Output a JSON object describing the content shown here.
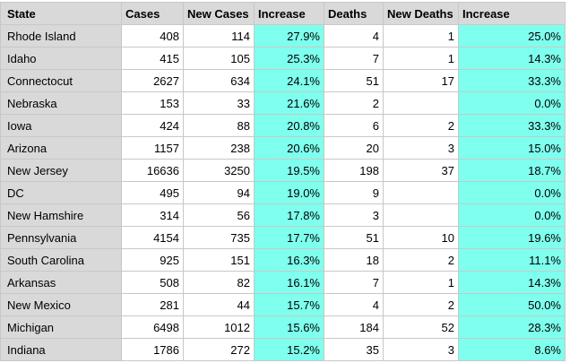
{
  "headers": [
    "State",
    "Cases",
    "New Cases",
    "Increase",
    "Deaths",
    "New Deaths",
    "Increase"
  ],
  "rows": [
    {
      "state": "Rhode Island",
      "cases": "408",
      "new_cases": "114",
      "increase": "27.9%",
      "deaths": "4",
      "new_deaths": "1",
      "death_increase": "25.0%"
    },
    {
      "state": "Idaho",
      "cases": "415",
      "new_cases": "105",
      "increase": "25.3%",
      "deaths": "7",
      "new_deaths": "1",
      "death_increase": "14.3%"
    },
    {
      "state": "Connectocut",
      "cases": "2627",
      "new_cases": "634",
      "increase": "24.1%",
      "deaths": "51",
      "new_deaths": "17",
      "death_increase": "33.3%"
    },
    {
      "state": "Nebraska",
      "cases": "153",
      "new_cases": "33",
      "increase": "21.6%",
      "deaths": "2",
      "new_deaths": "",
      "death_increase": "0.0%"
    },
    {
      "state": "Iowa",
      "cases": "424",
      "new_cases": "88",
      "increase": "20.8%",
      "deaths": "6",
      "new_deaths": "2",
      "death_increase": "33.3%"
    },
    {
      "state": "Arizona",
      "cases": "1157",
      "new_cases": "238",
      "increase": "20.6%",
      "deaths": "20",
      "new_deaths": "3",
      "death_increase": "15.0%"
    },
    {
      "state": "New Jersey",
      "cases": "16636",
      "new_cases": "3250",
      "increase": "19.5%",
      "deaths": "198",
      "new_deaths": "37",
      "death_increase": "18.7%"
    },
    {
      "state": "DC",
      "cases": "495",
      "new_cases": "94",
      "increase": "19.0%",
      "deaths": "9",
      "new_deaths": "",
      "death_increase": "0.0%"
    },
    {
      "state": "New Hamshire",
      "cases": "314",
      "new_cases": "56",
      "increase": "17.8%",
      "deaths": "3",
      "new_deaths": "",
      "death_increase": "0.0%"
    },
    {
      "state": "Pennsylvania",
      "cases": "4154",
      "new_cases": "735",
      "increase": "17.7%",
      "deaths": "51",
      "new_deaths": "10",
      "death_increase": "19.6%"
    },
    {
      "state": "South Carolina",
      "cases": "925",
      "new_cases": "151",
      "increase": "16.3%",
      "deaths": "18",
      "new_deaths": "2",
      "death_increase": "11.1%"
    },
    {
      "state": "Arkansas",
      "cases": "508",
      "new_cases": "82",
      "increase": "16.1%",
      "deaths": "7",
      "new_deaths": "1",
      "death_increase": "14.3%"
    },
    {
      "state": "New Mexico",
      "cases": "281",
      "new_cases": "44",
      "increase": "15.7%",
      "deaths": "4",
      "new_deaths": "2",
      "death_increase": "50.0%"
    },
    {
      "state": "Michigan",
      "cases": "6498",
      "new_cases": "1012",
      "increase": "15.6%",
      "deaths": "184",
      "new_deaths": "52",
      "death_increase": "28.3%"
    },
    {
      "state": "Indiana",
      "cases": "1786",
      "new_cases": "272",
      "increase": "15.2%",
      "deaths": "35",
      "new_deaths": "3",
      "death_increase": "8.6%"
    }
  ],
  "colors": {
    "header_bg": "#d9d9d9",
    "state_bg": "#d9d9d9",
    "increase_bg": "#7fffee",
    "grid_line": "#c8c8c8"
  }
}
